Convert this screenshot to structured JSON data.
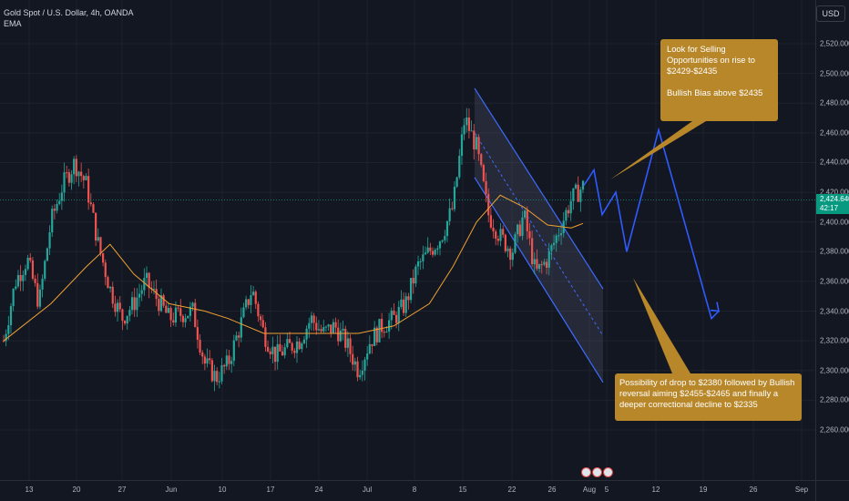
{
  "header": {
    "title": "Gold Spot / U.S. Dollar, 4h, OANDA",
    "indicator": "EMA"
  },
  "currency_button": "USD",
  "price_badge": {
    "price": "2,424.640",
    "countdown": "42:17"
  },
  "annotations": {
    "top": [
      "Look for Selling Opportunities on rise to $2429-$2435",
      "Bullish Bias above $2435"
    ],
    "bottom": "Possibility of drop to $2380 followed by Bullish reversal aiming $2455-$2465 and finally a deeper correctional decline to $2335"
  },
  "colors": {
    "background": "#131722",
    "up_candle": "#26a69a",
    "down_candle": "#ef5350",
    "ema": "#f0a032",
    "channel": "#3d6bff",
    "projection": "#2f5bff",
    "annotation": "#b8872a",
    "price_line": "#089981"
  },
  "chart_data": {
    "type": "candlestick",
    "title": "Gold Spot / U.S. Dollar, 4h, OANDA",
    "ylim": [
      2250,
      2540
    ],
    "y_ticks": [
      "2,520.000",
      "2,500.000",
      "2,480.000",
      "2,460.000",
      "2,440.000",
      "2,420.000",
      "2,400.000",
      "2,380.000",
      "2,360.000",
      "2,340.000",
      "2,320.000",
      "2,300.000",
      "2,280.000",
      "2,260.000"
    ],
    "x_ticks": [
      "13",
      "20",
      "27",
      "Jun",
      "10",
      "17",
      "24",
      "Jul",
      "8",
      "15",
      "22",
      "26",
      "Aug",
      "5",
      "12",
      "19",
      "26",
      "Sep"
    ],
    "current_price": 2424.64,
    "price_path": [
      [
        0,
        2320
      ],
      [
        1,
        2360
      ],
      [
        2,
        2375
      ],
      [
        3,
        2345
      ],
      [
        4,
        2400
      ],
      [
        5,
        2425
      ],
      [
        6,
        2440
      ],
      [
        7,
        2425
      ],
      [
        8,
        2385
      ],
      [
        9,
        2355
      ],
      [
        10,
        2335
      ],
      [
        11,
        2345
      ],
      [
        12,
        2360
      ],
      [
        13,
        2348
      ],
      [
        14,
        2335
      ],
      [
        15,
        2338
      ],
      [
        16,
        2340
      ],
      [
        17,
        2305
      ],
      [
        18,
        2295
      ],
      [
        19,
        2305
      ],
      [
        20,
        2330
      ],
      [
        21,
        2355
      ],
      [
        22,
        2325
      ],
      [
        23,
        2310
      ],
      [
        24,
        2315
      ],
      [
        25,
        2320
      ],
      [
        26,
        2335
      ],
      [
        27,
        2325
      ],
      [
        28,
        2330
      ],
      [
        29,
        2318
      ],
      [
        30,
        2300
      ],
      [
        31,
        2320
      ],
      [
        32,
        2330
      ],
      [
        33,
        2335
      ],
      [
        34,
        2345
      ],
      [
        35,
        2370
      ],
      [
        36,
        2380
      ],
      [
        37,
        2390
      ],
      [
        38,
        2410
      ],
      [
        39,
        2470
      ],
      [
        40,
        2450
      ],
      [
        41,
        2405
      ],
      [
        42,
        2390
      ],
      [
        43,
        2380
      ],
      [
        44,
        2405
      ],
      [
        45,
        2365
      ],
      [
        46,
        2375
      ],
      [
        47,
        2395
      ],
      [
        48,
        2415
      ],
      [
        49,
        2424
      ]
    ],
    "ema_path": [
      [
        0,
        2320
      ],
      [
        4,
        2345
      ],
      [
        7,
        2370
      ],
      [
        9,
        2385
      ],
      [
        11,
        2365
      ],
      [
        14,
        2345
      ],
      [
        17,
        2340
      ],
      [
        19,
        2335
      ],
      [
        22,
        2325
      ],
      [
        26,
        2325
      ],
      [
        30,
        2325
      ],
      [
        33,
        2330
      ],
      [
        36,
        2345
      ],
      [
        38,
        2370
      ],
      [
        40,
        2400
      ],
      [
        42,
        2418
      ],
      [
        44,
        2410
      ],
      [
        46,
        2398
      ],
      [
        48,
        2396
      ],
      [
        49,
        2399
      ]
    ],
    "channel": {
      "upper": [
        [
          2490,
          "Jul 15"
        ],
        [
          2355,
          "Aug 1"
        ]
      ],
      "lower": [
        [
          2430,
          "Jul 15"
        ],
        [
          2292,
          "Aug 1"
        ]
      ]
    },
    "projection": [
      2424.64,
      2435,
      2405,
      2420,
      2380,
      2462,
      2335,
      2340
    ]
  }
}
